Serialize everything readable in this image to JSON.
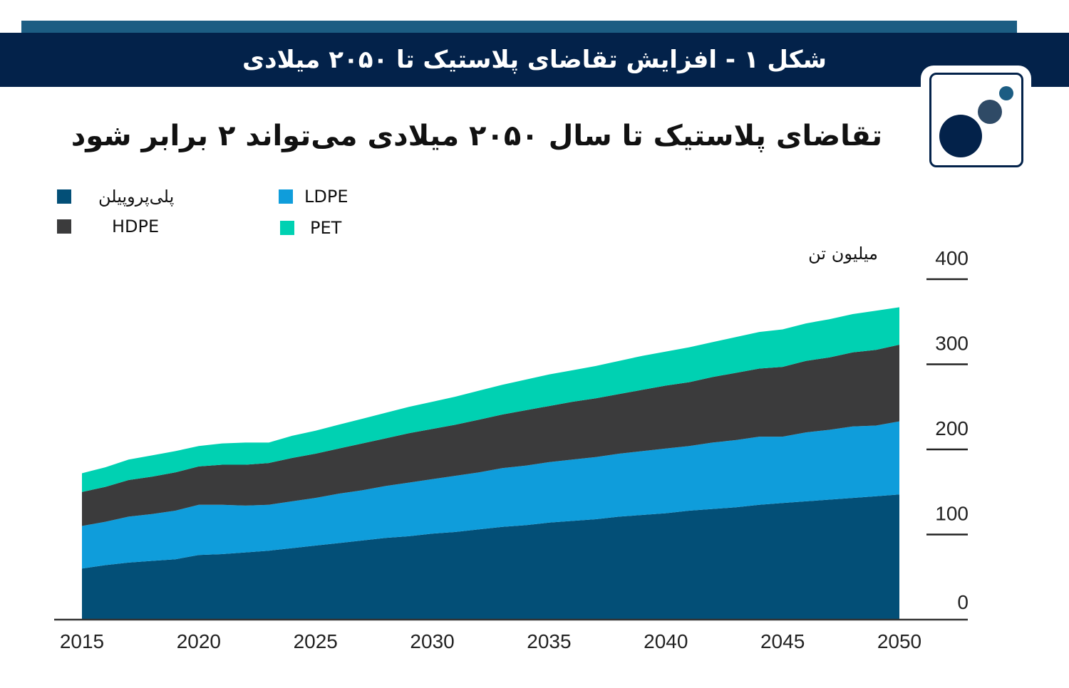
{
  "header": {
    "figure_title": "شکل ۱ - افزایش تقاضای پلاستیک تا ۲۰۵۰ میلادی"
  },
  "brand": {
    "logo_icon": "three-circles-logo-icon",
    "colors": {
      "navy": "#03224a",
      "steel_blue": "#1c5d83",
      "circle_dark": "#2f4a66"
    }
  },
  "chart_data": {
    "type": "area",
    "stacked": true,
    "title": "تقاضای پلاستیک تا سال ۲۰۵۰ میلادی می‌تواند ۲ برابر شود",
    "ylabel": "میلیون تن",
    "xlabel": "",
    "ylim": [
      0,
      400
    ],
    "xlim": [
      2015,
      2050
    ],
    "y_ticks": [
      "0",
      "100",
      "200",
      "300",
      "400"
    ],
    "x_ticks": [
      "2015",
      "2020",
      "2025",
      "2030",
      "2035",
      "2040",
      "2045",
      "2050"
    ],
    "y_axis_side": "right",
    "grid": false,
    "legend_position": "top-left",
    "x": [
      2015,
      2016,
      2017,
      2018,
      2019,
      2020,
      2021,
      2022,
      2023,
      2024,
      2025,
      2026,
      2027,
      2028,
      2029,
      2030,
      2031,
      2032,
      2033,
      2034,
      2035,
      2036,
      2037,
      2038,
      2039,
      2040,
      2041,
      2042,
      2043,
      2044,
      2045,
      2046,
      2047,
      2048,
      2049,
      2050
    ],
    "series": [
      {
        "name": "پلی‌پروپیلن",
        "color": "#034f77",
        "values": [
          60,
          64,
          67,
          69,
          71,
          76,
          77,
          79,
          81,
          84,
          87,
          90,
          93,
          96,
          98,
          101,
          103,
          106,
          109,
          111,
          114,
          116,
          118,
          121,
          123,
          125,
          128,
          130,
          132,
          135,
          137,
          139,
          141,
          143,
          145,
          147
        ]
      },
      {
        "name": "LDPE",
        "color": "#0f9ddb",
        "values": [
          50,
          51,
          54,
          55,
          57,
          59,
          58,
          55,
          54,
          55,
          56,
          58,
          59,
          61,
          63,
          64,
          66,
          67,
          69,
          70,
          71,
          72,
          73,
          74,
          75,
          76,
          76,
          78,
          79,
          80,
          78,
          81,
          82,
          84,
          83,
          86
        ]
      },
      {
        "name": "HDPE",
        "color": "#3b3b3c",
        "values": [
          40,
          41,
          43,
          44,
          45,
          45,
          47,
          48,
          49,
          51,
          52,
          53,
          55,
          56,
          58,
          59,
          60,
          62,
          63,
          65,
          66,
          68,
          69,
          70,
          72,
          74,
          75,
          77,
          79,
          80,
          82,
          84,
          85,
          87,
          89,
          90
        ]
      },
      {
        "name": "PET",
        "color": "#00d1b2",
        "values": [
          22,
          23,
          24,
          25,
          25,
          24,
          25,
          26,
          24,
          26,
          27,
          28,
          29,
          30,
          31,
          32,
          33,
          34,
          35,
          36,
          37,
          37,
          38,
          39,
          40,
          40,
          41,
          41,
          42,
          43,
          44,
          44,
          45,
          45,
          46,
          44
        ]
      }
    ]
  }
}
